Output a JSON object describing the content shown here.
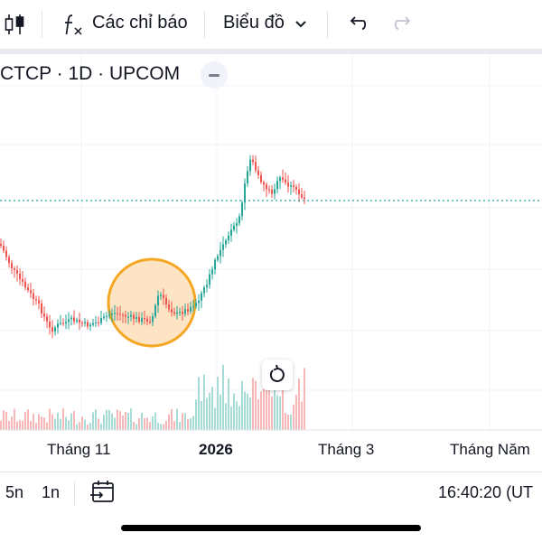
{
  "toolbar": {
    "chart_type_icon": "candles-icon",
    "indicators_icon": "function-fx-icon",
    "indicators_label": "Các chỉ báo",
    "chart_label": "Biểu đồ",
    "chart_dropdown_icon": "chevron-down-icon",
    "undo_icon": "undo-icon",
    "redo_icon": "redo-icon"
  },
  "legend": {
    "symbol_text": "CTCP · 1D · UPCOM",
    "collapse_icon": "minus-icon"
  },
  "chart": {
    "reset_icon": "reset-rotate-icon",
    "x_axis_labels": [
      "Tháng 11",
      "2026",
      "Tháng 3",
      "Tháng Năm"
    ],
    "up_color": "#26a69a",
    "down_color": "#ef5350",
    "last_price_line_color": "#26a69a",
    "highlight_circle_fill": "#fde4c4",
    "highlight_circle_stroke": "#f5a623"
  },
  "bottom_bar": {
    "range_5y": "5n",
    "range_1y": "1n",
    "goto_date_icon": "calendar-goto-icon",
    "clock": "16:40:20 (UT"
  }
}
